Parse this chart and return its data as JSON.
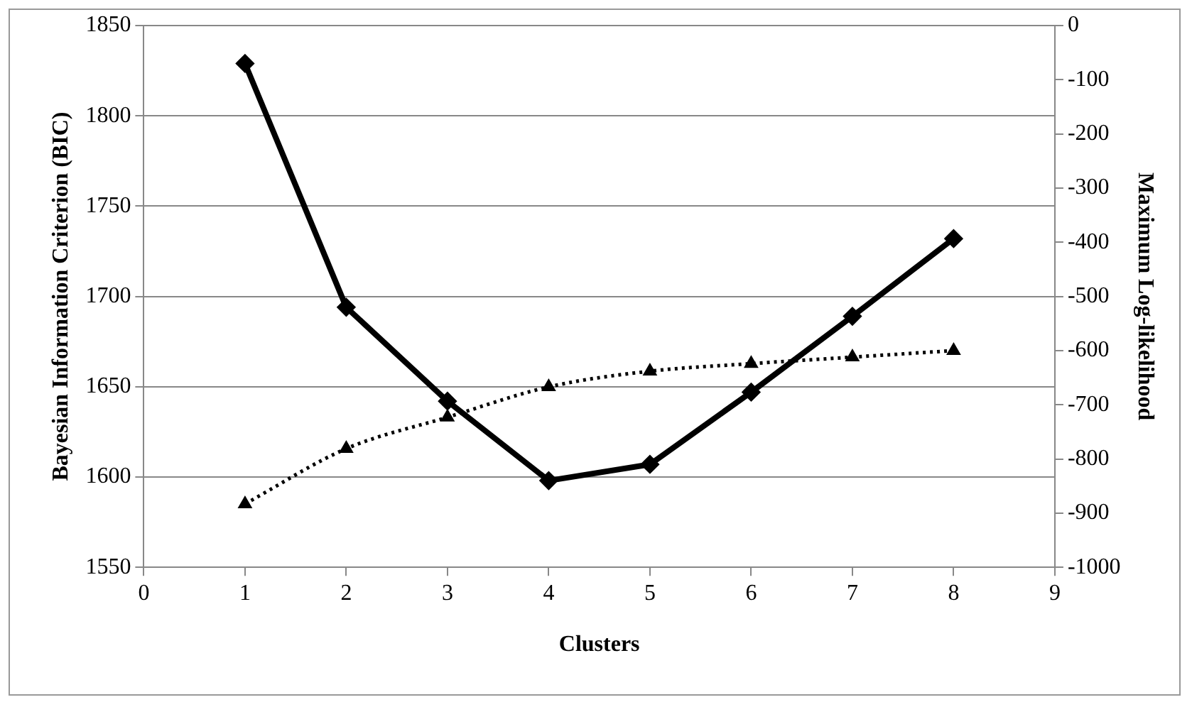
{
  "chart_data": {
    "type": "line",
    "xlabel": "Clusters",
    "ylabel": "Bayesian Information Criterion (BIC)",
    "y2label": "Maximum Log-likelihood",
    "x": [
      1,
      2,
      3,
      4,
      5,
      6,
      7,
      8
    ],
    "series": [
      {
        "color": "#000000",
        "values": [
          1829,
          1694,
          1642,
          1598,
          1607,
          1647,
          1689,
          1732
        ],
        "marker": "diamond",
        "line_style": "solid"
      },
      {
        "color": "#000000",
        "values": [
          -883,
          -781,
          -723,
          -667,
          -638,
          -624,
          -612,
          -600
        ],
        "marker": "triangle",
        "line_style": "dotted",
        "axis": "y2"
      }
    ],
    "xlim": [
      0,
      9
    ],
    "xticks": [
      0,
      1,
      2,
      3,
      4,
      5,
      6,
      7,
      8,
      9
    ],
    "ylim": [
      1550,
      1850
    ],
    "yticks": [
      1550,
      1600,
      1650,
      1700,
      1750,
      1800,
      1850
    ],
    "y2lim": [
      -1000,
      0
    ],
    "y2ticks": [
      -1000,
      -900,
      -800,
      -700,
      -600,
      -500,
      -400,
      -300,
      -200,
      -100,
      0
    ],
    "grid": "y",
    "legend": false
  }
}
